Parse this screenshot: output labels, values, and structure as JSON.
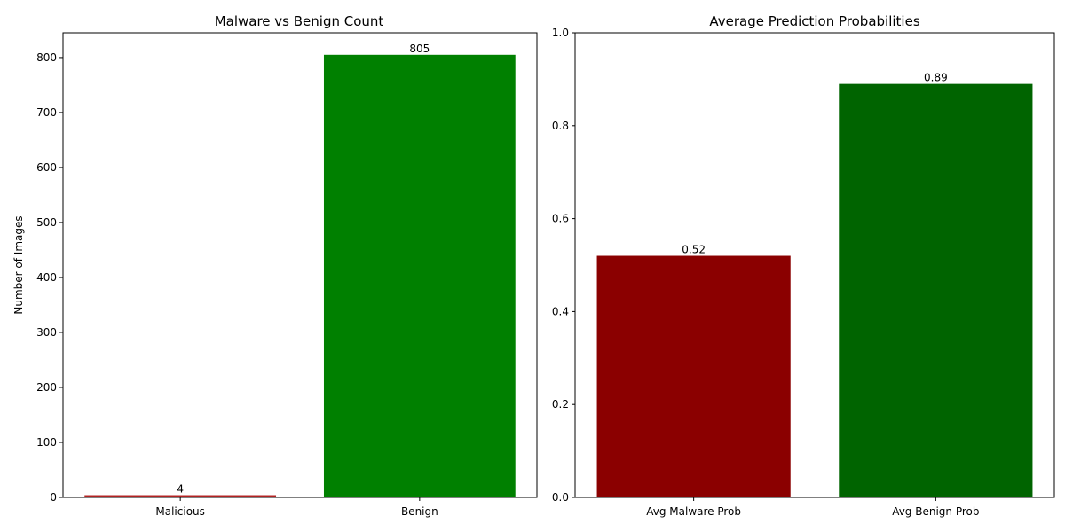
{
  "chart_data": [
    {
      "type": "bar",
      "title": "Malware vs Benign Count",
      "xlabel": "",
      "ylabel": "Number of Images",
      "categories": [
        "Malicious",
        "Benign"
      ],
      "values": [
        4,
        805
      ],
      "data_labels": [
        "4",
        "805"
      ],
      "colors": [
        "#b22222",
        "#008000"
      ],
      "ylim": [
        0,
        845
      ],
      "yticks": [
        0,
        100,
        200,
        300,
        400,
        500,
        600,
        700,
        800
      ],
      "ytick_labels": [
        "0",
        "100",
        "200",
        "300",
        "400",
        "500",
        "600",
        "700",
        "800"
      ],
      "grid": false,
      "legend": "none"
    },
    {
      "type": "bar",
      "title": "Average Prediction Probabilities",
      "xlabel": "",
      "ylabel": "",
      "categories": [
        "Avg Malware Prob",
        "Avg Benign Prob"
      ],
      "values": [
        0.52,
        0.89
      ],
      "data_labels": [
        "0.52",
        "0.89"
      ],
      "colors": [
        "#8b0000",
        "#006400"
      ],
      "ylim": [
        0,
        1.0
      ],
      "yticks": [
        0.0,
        0.2,
        0.4,
        0.6,
        0.8,
        1.0
      ],
      "ytick_labels": [
        "0.0",
        "0.2",
        "0.4",
        "0.6",
        "0.8",
        "1.0"
      ],
      "grid": false,
      "legend": "none"
    }
  ]
}
